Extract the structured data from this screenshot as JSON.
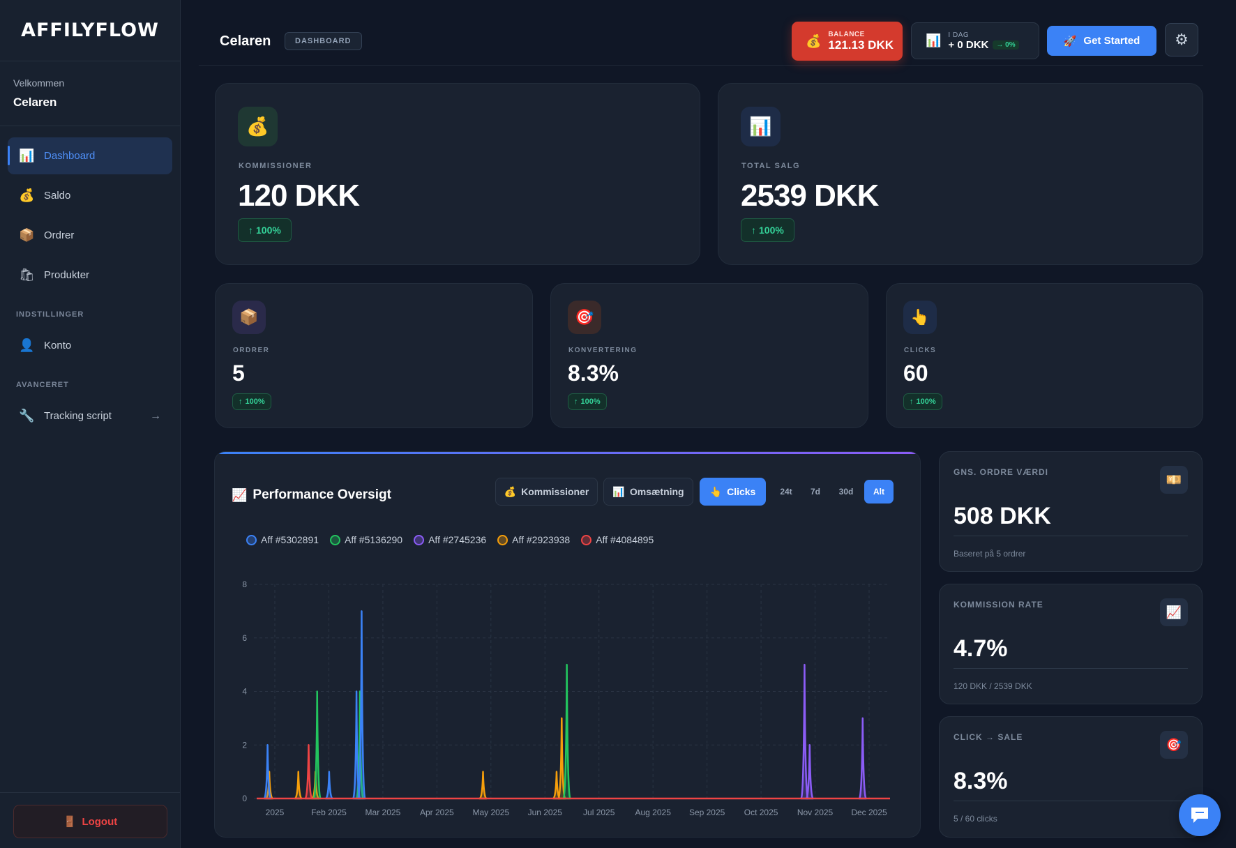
{
  "app": {
    "logo": "AFFILYFLOW"
  },
  "sidebar": {
    "welcome_label": "Velkommen",
    "user_name": "Celaren",
    "items": [
      {
        "label": "Dashboard",
        "icon": "chart-icon"
      },
      {
        "label": "Saldo",
        "icon": "money-bag-icon"
      },
      {
        "label": "Ordrer",
        "icon": "package-icon"
      },
      {
        "label": "Produkter",
        "icon": "shopping-bags-icon"
      }
    ],
    "section_settings": "INDSTILLINGER",
    "konto_label": "Konto",
    "section_advanced": "AVANCERET",
    "tracking_label": "Tracking script",
    "logout_label": "Logout"
  },
  "header": {
    "title": "Celaren",
    "breadcrumb": "DASHBOARD",
    "balance_label": "BALANCE",
    "balance_value": "121.13 DKK",
    "today_label": "I DAG",
    "today_value": "+ 0 DKK",
    "today_change": "→ 0%",
    "get_started_label": "Get Started"
  },
  "stats": {
    "commissions": {
      "label": "KOMMISSIONER",
      "value": "120 DKK",
      "change": "100%"
    },
    "total_sales": {
      "label": "TOTAL SALG",
      "value": "2539 DKK",
      "change": "100%"
    },
    "orders": {
      "label": "ORDRER",
      "value": "5",
      "change": "100%"
    },
    "conversion": {
      "label": "KONVERTERING",
      "value": "8.3%",
      "change": "100%"
    },
    "clicks": {
      "label": "CLICKS",
      "value": "60",
      "change": "100%"
    }
  },
  "performance": {
    "title": "Performance Oversigt",
    "metric_buttons": [
      "Kommissioner",
      "Omsætning",
      "Clicks"
    ],
    "active_metric": "Clicks",
    "range_buttons": [
      "24t",
      "7d",
      "30d",
      "Alt"
    ],
    "active_range": "Alt"
  },
  "side_cards": {
    "avg_order": {
      "label": "GNS. ORDRE VÆRDI",
      "value": "508 DKK",
      "sub": "Baseret på 5 ordrer"
    },
    "commission_rate": {
      "label": "KOMMISSION RATE",
      "value": "4.7%",
      "sub": "120 DKK / 2539 DKK"
    },
    "click_sale": {
      "label": "CLICK → SALE",
      "value": "8.3%",
      "sub": "5 / 60 clicks"
    }
  },
  "colors": {
    "accent": "#3b82f6",
    "danger": "#d43a2d",
    "success": "#34d399"
  },
  "chart_data": {
    "type": "line",
    "ylim": [
      0,
      8
    ],
    "yticks": [
      0,
      2,
      4,
      6,
      8
    ],
    "x_labels": [
      "2025",
      "Feb 2025",
      "Mar 2025",
      "Apr 2025",
      "May 2025",
      "Jun 2025",
      "Jul 2025",
      "Aug 2025",
      "Sep 2025",
      "Oct 2025",
      "Nov 2025",
      "Dec 2025"
    ],
    "series": [
      {
        "name": "Aff #5302891",
        "color": "#3b82f6",
        "points": [
          {
            "x": "2025-01-01",
            "y": 2
          },
          {
            "x": "2025-02-06",
            "y": 1
          },
          {
            "x": "2025-02-22",
            "y": 4
          },
          {
            "x": "2025-02-25",
            "y": 7
          }
        ]
      },
      {
        "name": "Aff #5136290",
        "color": "#22c55e",
        "points": [
          {
            "x": "2025-01-30",
            "y": 4
          },
          {
            "x": "2025-02-24",
            "y": 4
          },
          {
            "x": "2025-06-25",
            "y": 5
          }
        ]
      },
      {
        "name": "Aff #2745236",
        "color": "#8b5cf6",
        "points": [
          {
            "x": "2025-11-11",
            "y": 5
          },
          {
            "x": "2025-11-14",
            "y": 2
          },
          {
            "x": "2025-12-15",
            "y": 3
          }
        ]
      },
      {
        "name": "Aff #2923938",
        "color": "#f59e0b",
        "points": [
          {
            "x": "2025-01-02",
            "y": 1
          },
          {
            "x": "2025-01-19",
            "y": 1
          },
          {
            "x": "2025-01-29",
            "y": 1
          },
          {
            "x": "2025-05-07",
            "y": 1
          },
          {
            "x": "2025-06-19",
            "y": 1
          },
          {
            "x": "2025-06-22",
            "y": 3
          }
        ]
      },
      {
        "name": "Aff #4084895",
        "color": "#ef4444",
        "points": [
          {
            "x": "2025-01-25",
            "y": 2
          }
        ]
      }
    ]
  }
}
